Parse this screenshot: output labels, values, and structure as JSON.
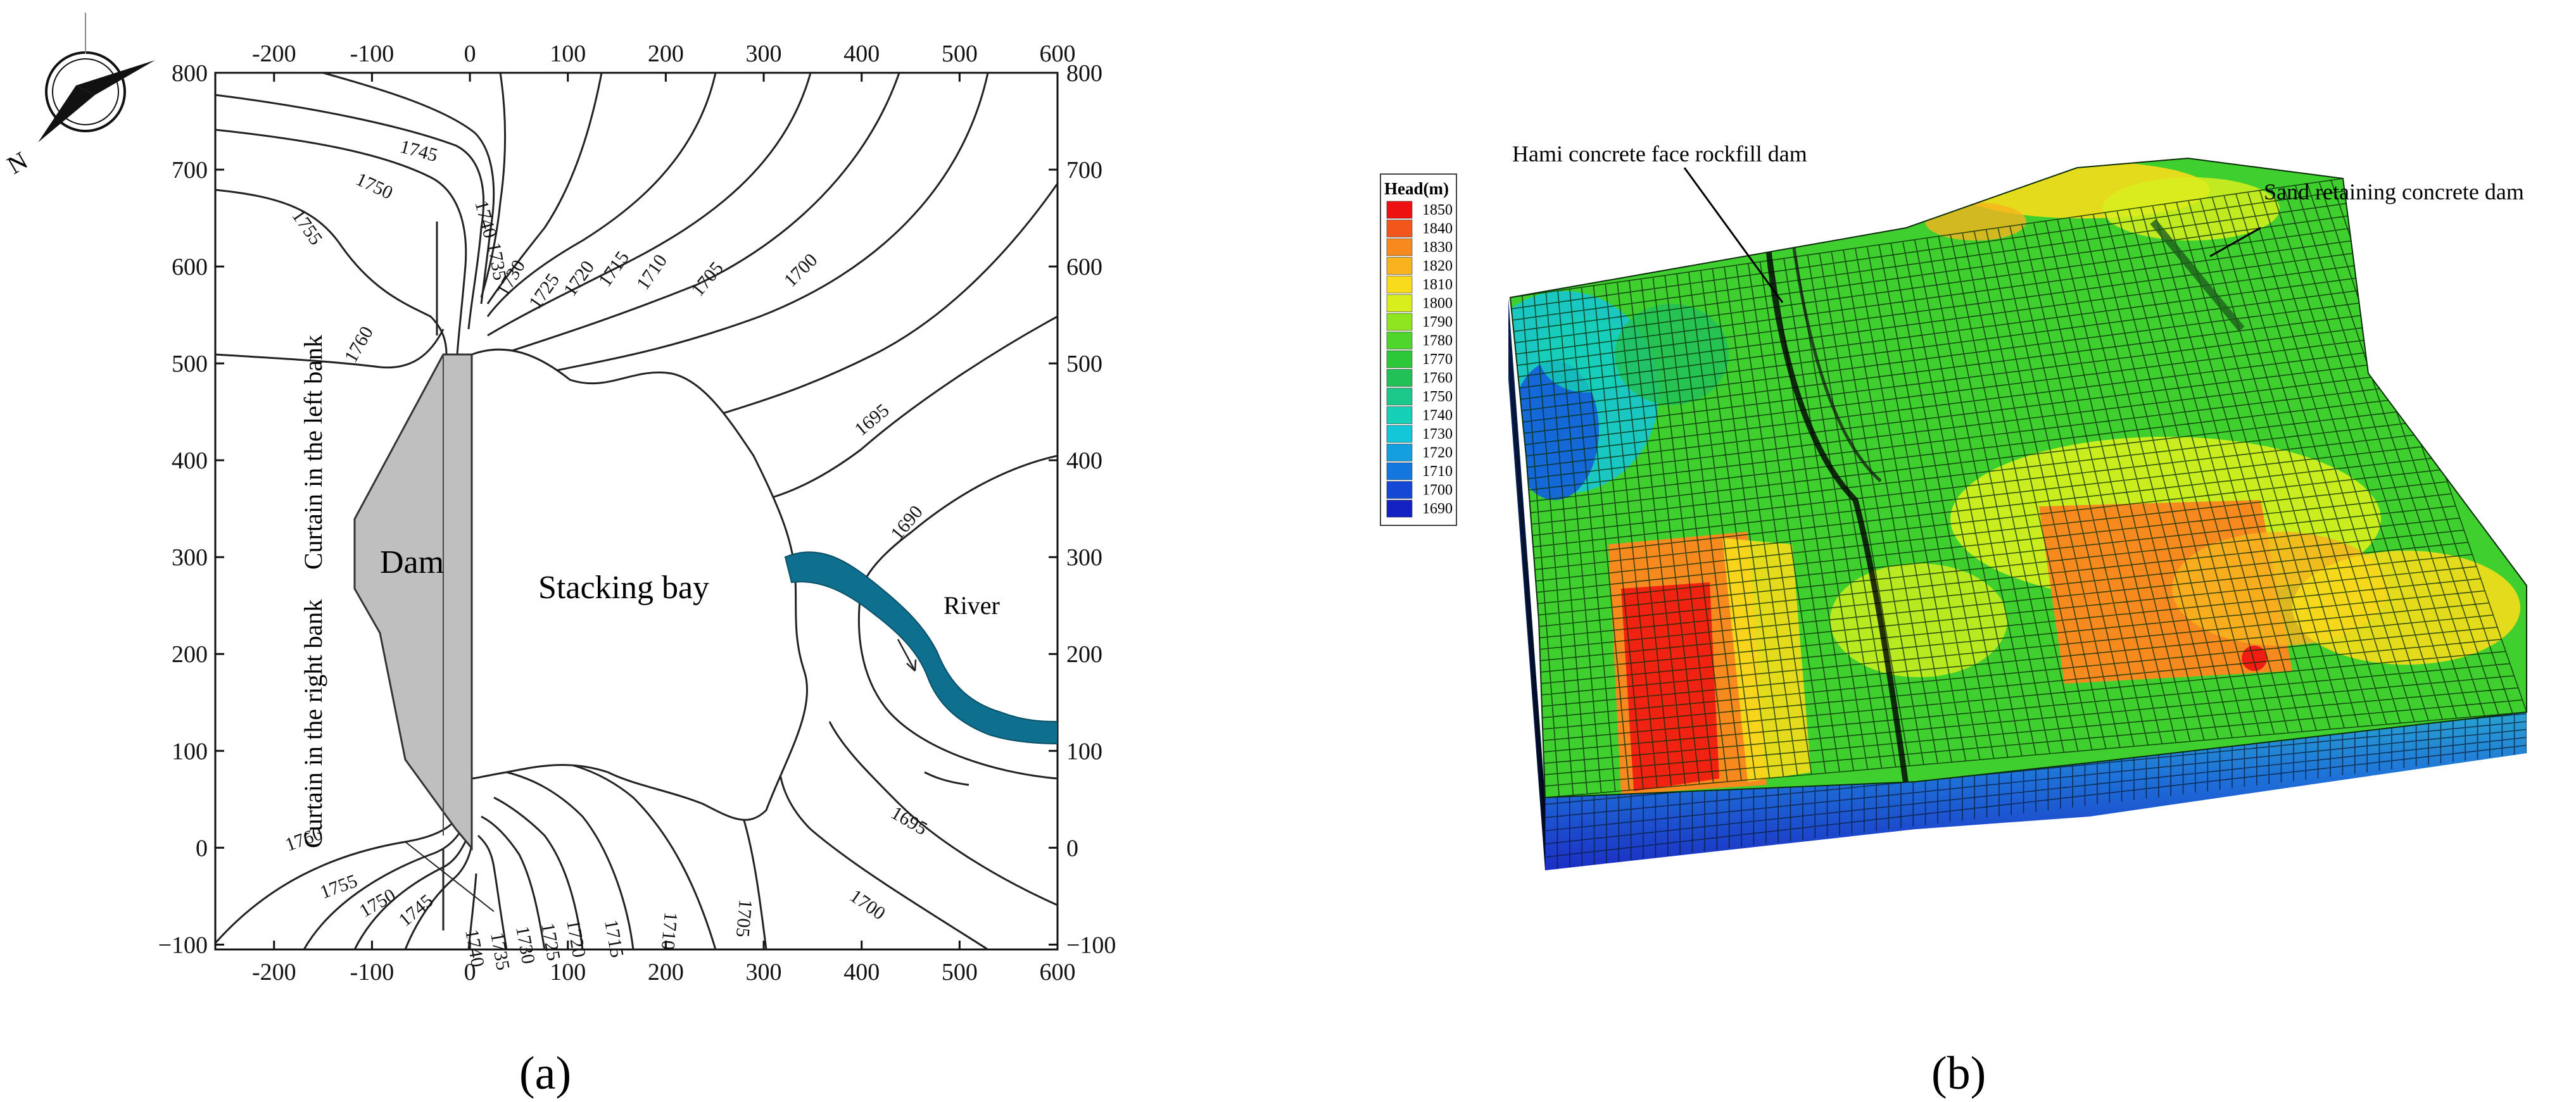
{
  "panel_a": {
    "label": "(a)",
    "axis_ticks_x": [
      "-200",
      "-100",
      "0",
      "100",
      "200",
      "300",
      "400",
      "500",
      "600"
    ],
    "axis_ticks_y": [
      "800",
      "700",
      "600",
      "500",
      "400",
      "300",
      "200",
      "100",
      "0",
      "-100"
    ],
    "dam_label": "Dam",
    "bay_label": "Stacking bay",
    "river_label": "River",
    "left_curtain_label": "Curtain in the left bank",
    "right_curtain_label": "Curtain in the right bank",
    "north_label": "N",
    "contour_labels_upper": [
      "1745",
      "1750",
      "1755",
      "1740",
      "1735",
      "1730",
      "1725",
      "1720",
      "1715",
      "1710",
      "1705",
      "1700",
      "1695",
      "1690",
      "1760"
    ],
    "contour_labels_lower": [
      "1760",
      "1755",
      "1750",
      "1745",
      "1740",
      "1735",
      "1730",
      "1725",
      "1720",
      "1715",
      "1710",
      "1705",
      "1700",
      "1695"
    ]
  },
  "panel_b": {
    "label": "(b)",
    "legend_title": "Head(m)",
    "legend_entries": [
      {
        "value": "1850",
        "color": "#ee1111"
      },
      {
        "value": "1840",
        "color": "#f3561a"
      },
      {
        "value": "1830",
        "color": "#f78a1e"
      },
      {
        "value": "1820",
        "color": "#f8b31e"
      },
      {
        "value": "1810",
        "color": "#f7db1c"
      },
      {
        "value": "1800",
        "color": "#d8ef1d"
      },
      {
        "value": "1790",
        "color": "#8fe51f"
      },
      {
        "value": "1780",
        "color": "#4ed62b"
      },
      {
        "value": "1770",
        "color": "#2cc83a"
      },
      {
        "value": "1760",
        "color": "#22c158"
      },
      {
        "value": "1750",
        "color": "#1cc88a"
      },
      {
        "value": "1740",
        "color": "#16d0b8"
      },
      {
        "value": "1730",
        "color": "#14c7d8"
      },
      {
        "value": "1720",
        "color": "#139fe0"
      },
      {
        "value": "1710",
        "color": "#1477dd"
      },
      {
        "value": "1700",
        "color": "#1449d6"
      },
      {
        "value": "1690",
        "color": "#1422c4"
      }
    ],
    "annotation_left": "Hami concrete face rockfill dam",
    "annotation_right": "Sand retaining concrete dam"
  }
}
